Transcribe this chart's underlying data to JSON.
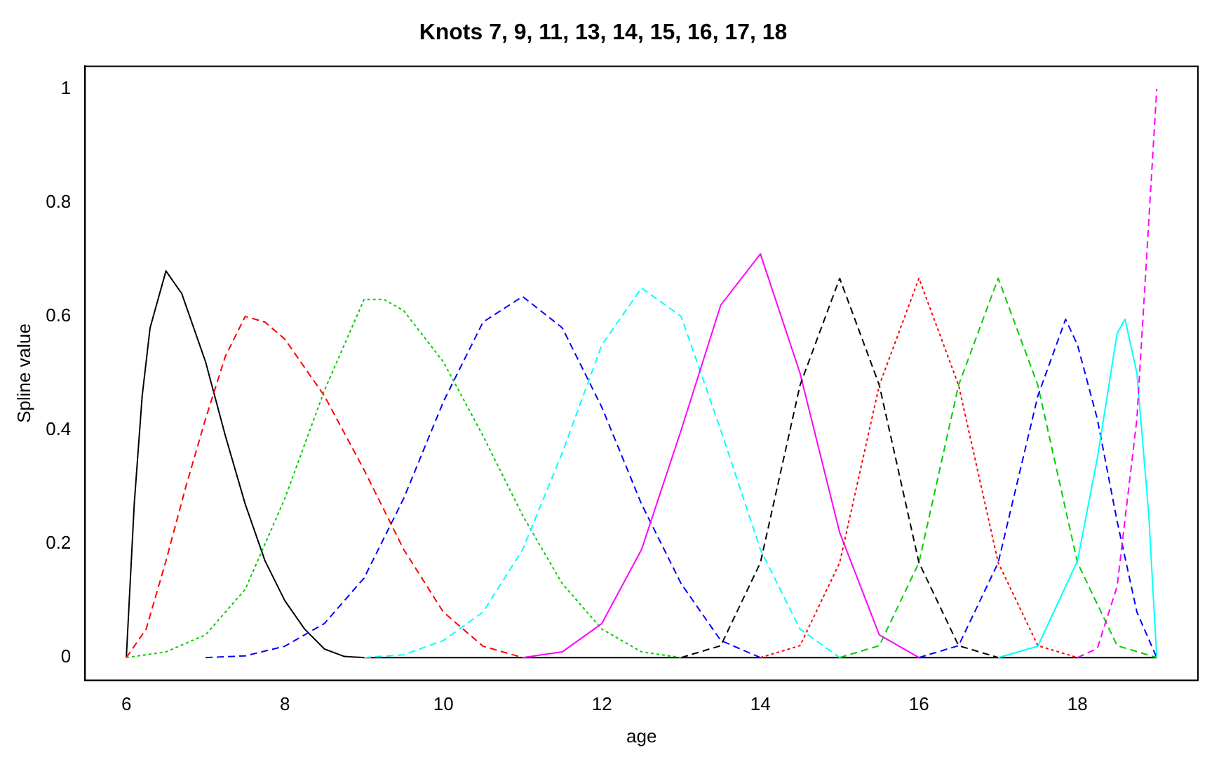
{
  "chart_data": {
    "type": "line",
    "title": "Knots 7, 9, 11, 13, 14, 15, 16, 17, 18",
    "xlabel": "age",
    "ylabel": "Spline value",
    "xlim": [
      5.48,
      19.52
    ],
    "xticks": [
      6,
      8,
      10,
      12,
      14,
      16,
      18
    ],
    "ylim": [
      -0.04,
      1.04
    ],
    "yticks": [
      0,
      0.2,
      0.4,
      0.6,
      0.8,
      1
    ],
    "grid": false,
    "legend": false,
    "marker": "none",
    "series": [
      {
        "color": "#000000",
        "line_style": "solid",
        "x": [
          6,
          6.1,
          6.2,
          6.3,
          6.5,
          6.7,
          7,
          7.25,
          7.5,
          7.75,
          8,
          8.25,
          8.5,
          8.75,
          9,
          19
        ],
        "values": [
          0,
          0.27,
          0.46,
          0.58,
          0.68,
          0.64,
          0.52,
          0.39,
          0.27,
          0.17,
          0.1,
          0.05,
          0.015,
          0.002,
          0,
          0
        ]
      },
      {
        "color": "#ff0000",
        "line_style": "dashed",
        "x": [
          6,
          6.25,
          6.5,
          6.75,
          7,
          7.25,
          7.5,
          7.75,
          8,
          8.5,
          9,
          9.5,
          10,
          10.5,
          11
        ],
        "values": [
          0,
          0.05,
          0.17,
          0.3,
          0.42,
          0.53,
          0.6,
          0.59,
          0.56,
          0.46,
          0.33,
          0.19,
          0.08,
          0.02,
          0
        ]
      },
      {
        "color": "#00cd00",
        "line_style": "dotted",
        "x": [
          6,
          6.5,
          7,
          7.5,
          8,
          8.5,
          9,
          9.25,
          9.5,
          10,
          10.5,
          11,
          11.5,
          12,
          12.5,
          13
        ],
        "values": [
          0,
          0.01,
          0.04,
          0.12,
          0.28,
          0.47,
          0.63,
          0.63,
          0.61,
          0.52,
          0.39,
          0.25,
          0.13,
          0.05,
          0.01,
          0
        ]
      },
      {
        "color": "#0000ff",
        "line_style": "dashed",
        "x": [
          7,
          7.5,
          8,
          8.5,
          9,
          9.5,
          10,
          10.5,
          11,
          11.5,
          12,
          12.5,
          13,
          13.5,
          14
        ],
        "values": [
          0,
          0.003,
          0.02,
          0.06,
          0.14,
          0.28,
          0.45,
          0.59,
          0.635,
          0.58,
          0.44,
          0.27,
          0.13,
          0.03,
          0
        ]
      },
      {
        "color": "#00ffff",
        "line_style": "dashed",
        "x": [
          9,
          9.5,
          10,
          10.5,
          11,
          11.5,
          12,
          12.5,
          13,
          13.5,
          14,
          14.5,
          15
        ],
        "values": [
          0,
          0.005,
          0.03,
          0.08,
          0.19,
          0.36,
          0.55,
          0.65,
          0.6,
          0.4,
          0.19,
          0.05,
          0
        ]
      },
      {
        "color": "#ff00ff",
        "line_style": "solid",
        "x": [
          11,
          11.5,
          12,
          12.5,
          13,
          13.5,
          14,
          14.5,
          15,
          15.5,
          16
        ],
        "values": [
          0,
          0.01,
          0.06,
          0.19,
          0.4,
          0.62,
          0.71,
          0.5,
          0.22,
          0.04,
          0
        ]
      },
      {
        "color": "#000000",
        "line_style": "dashed",
        "x": [
          13,
          13.5,
          14,
          14.5,
          15,
          15.5,
          16,
          16.5,
          17
        ],
        "values": [
          0,
          0.021,
          0.167,
          0.479,
          0.667,
          0.479,
          0.167,
          0.021,
          0
        ]
      },
      {
        "color": "#ff0000",
        "line_style": "dotted",
        "x": [
          14,
          14.5,
          15,
          15.5,
          16,
          16.5,
          17,
          17.5,
          18
        ],
        "values": [
          0,
          0.021,
          0.167,
          0.479,
          0.667,
          0.479,
          0.167,
          0.021,
          0
        ]
      },
      {
        "color": "#00cd00",
        "line_style": "dashed",
        "x": [
          15,
          15.5,
          16,
          16.5,
          17,
          17.5,
          18,
          18.5,
          19
        ],
        "values": [
          0,
          0.021,
          0.167,
          0.479,
          0.667,
          0.479,
          0.167,
          0.021,
          0
        ]
      },
      {
        "color": "#0000ff",
        "line_style": "dashed",
        "x": [
          16,
          16.5,
          17,
          17.5,
          17.85,
          18,
          18.25,
          18.5,
          18.75,
          19
        ],
        "values": [
          0,
          0.021,
          0.167,
          0.46,
          0.595,
          0.55,
          0.42,
          0.24,
          0.08,
          0
        ]
      },
      {
        "color": "#00ffff",
        "line_style": "solid",
        "x": [
          17,
          17.5,
          18,
          18.25,
          18.5,
          18.6,
          18.75,
          18.9,
          19
        ],
        "values": [
          0,
          0.02,
          0.17,
          0.35,
          0.57,
          0.595,
          0.5,
          0.25,
          0
        ]
      },
      {
        "color": "#ff00ff",
        "line_style": "dashed",
        "x": [
          18,
          18.25,
          18.5,
          18.75,
          19
        ],
        "values": [
          0,
          0.016,
          0.125,
          0.42,
          1
        ]
      }
    ]
  }
}
